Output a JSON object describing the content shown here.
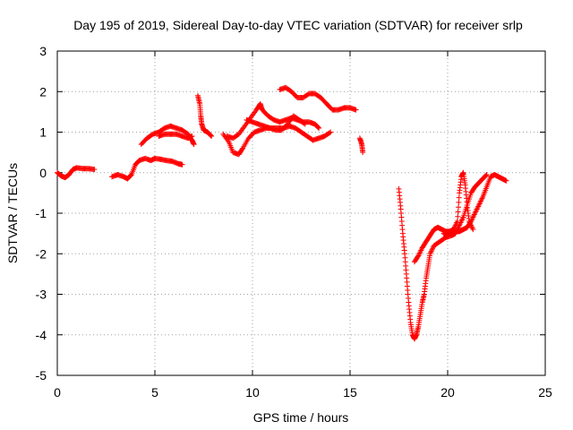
{
  "chart_data": {
    "type": "scatter",
    "title": "Day 195 of 2019, Sidereal Day-to-day VTEC variation (SDTVAR) for receiver srlp",
    "xlabel": "GPS time / hours",
    "ylabel": "SDTVAR / TECUs",
    "xlim": [
      0,
      25
    ],
    "ylim": [
      -5,
      3
    ],
    "xticks": [
      "0",
      "5",
      "10",
      "15",
      "20",
      "25"
    ],
    "yticks": [
      "3",
      "2",
      "1",
      "0",
      "-1",
      "-2",
      "-3",
      "-4",
      "-5"
    ],
    "grid": true,
    "marker": "+",
    "color": "#ff0000",
    "series": [
      {
        "segments": [
          [
            [
              0.0,
              0.0
            ],
            [
              0.2,
              -0.08
            ],
            [
              0.4,
              -0.12
            ],
            [
              0.6,
              -0.05
            ],
            [
              0.8,
              0.08
            ],
            [
              1.0,
              0.12
            ],
            [
              1.3,
              0.1
            ],
            [
              1.6,
              0.1
            ],
            [
              1.9,
              0.08
            ]
          ],
          [
            [
              2.8,
              -0.1
            ],
            [
              3.1,
              -0.05
            ],
            [
              3.4,
              -0.1
            ],
            [
              3.6,
              -0.15
            ],
            [
              3.8,
              -0.05
            ],
            [
              4.0,
              0.2
            ],
            [
              4.2,
              0.3
            ],
            [
              4.5,
              0.35
            ],
            [
              4.8,
              0.3
            ],
            [
              5.0,
              0.35
            ],
            [
              5.3,
              0.33
            ],
            [
              5.6,
              0.3
            ],
            [
              5.9,
              0.28
            ],
            [
              6.2,
              0.22
            ],
            [
              6.4,
              0.2
            ]
          ],
          [
            [
              4.3,
              0.7
            ],
            [
              4.6,
              0.85
            ],
            [
              4.9,
              0.95
            ],
            [
              5.2,
              1.0
            ],
            [
              5.5,
              1.1
            ],
            [
              5.8,
              1.15
            ],
            [
              6.1,
              1.1
            ],
            [
              6.4,
              1.05
            ],
            [
              6.7,
              0.95
            ],
            [
              6.9,
              0.8
            ],
            [
              7.0,
              0.7
            ]
          ],
          [
            [
              5.2,
              0.9
            ],
            [
              5.5,
              0.95
            ],
            [
              5.8,
              0.95
            ],
            [
              6.1,
              0.95
            ],
            [
              6.4,
              0.9
            ],
            [
              6.7,
              0.85
            ],
            [
              6.9,
              0.9
            ]
          ],
          [
            [
              7.2,
              1.9
            ],
            [
              7.3,
              1.7
            ],
            [
              7.35,
              1.4
            ],
            [
              7.4,
              1.2
            ],
            [
              7.5,
              1.05
            ],
            [
              7.7,
              1.0
            ],
            [
              7.9,
              0.9
            ]
          ],
          [
            [
              8.5,
              0.95
            ],
            [
              8.8,
              0.75
            ],
            [
              9.0,
              0.5
            ],
            [
              9.3,
              0.45
            ],
            [
              9.5,
              0.6
            ],
            [
              9.8,
              0.85
            ],
            [
              10.1,
              1.0
            ],
            [
              10.4,
              1.05
            ],
            [
              10.7,
              1.1
            ],
            [
              11.0,
              1.1
            ],
            [
              11.3,
              1.1
            ],
            [
              11.6,
              1.1
            ],
            [
              11.9,
              1.15
            ],
            [
              12.2,
              1.1
            ],
            [
              12.5,
              1.0
            ],
            [
              12.8,
              0.9
            ],
            [
              13.1,
              0.8
            ],
            [
              13.4,
              0.85
            ],
            [
              13.7,
              0.9
            ],
            [
              14.0,
              1.0
            ]
          ],
          [
            [
              8.7,
              0.9
            ],
            [
              9.0,
              0.85
            ],
            [
              9.3,
              0.95
            ],
            [
              9.6,
              1.15
            ],
            [
              9.9,
              1.35
            ],
            [
              10.2,
              1.55
            ],
            [
              10.4,
              1.7
            ],
            [
              10.5,
              1.55
            ],
            [
              10.8,
              1.4
            ],
            [
              11.1,
              1.3
            ],
            [
              11.4,
              1.25
            ],
            [
              11.7,
              1.3
            ],
            [
              12.0,
              1.35
            ],
            [
              12.3,
              1.3
            ],
            [
              12.6,
              1.25
            ],
            [
              12.9,
              1.25
            ],
            [
              13.2,
              1.2
            ],
            [
              13.4,
              1.1
            ]
          ],
          [
            [
              9.7,
              1.3
            ],
            [
              10.0,
              1.25
            ],
            [
              10.3,
              1.2
            ],
            [
              10.6,
              1.15
            ],
            [
              10.9,
              1.1
            ],
            [
              11.2,
              1.05
            ],
            [
              11.5,
              1.05
            ],
            [
              11.8,
              1.2
            ],
            [
              12.1,
              1.4
            ],
            [
              12.4,
              1.3
            ],
            [
              12.7,
              1.2
            ]
          ],
          [
            [
              11.4,
              2.05
            ],
            [
              11.7,
              2.1
            ],
            [
              12.0,
              2.0
            ],
            [
              12.3,
              1.85
            ],
            [
              12.6,
              1.85
            ],
            [
              12.9,
              1.95
            ],
            [
              13.2,
              1.95
            ],
            [
              13.5,
              1.85
            ],
            [
              13.8,
              1.7
            ],
            [
              14.1,
              1.55
            ],
            [
              14.4,
              1.55
            ],
            [
              14.7,
              1.6
            ],
            [
              15.0,
              1.6
            ],
            [
              15.3,
              1.55
            ]
          ],
          [
            [
              15.5,
              0.85
            ],
            [
              15.6,
              0.7
            ],
            [
              15.65,
              0.5
            ]
          ],
          [
            [
              17.5,
              -0.4
            ],
            [
              17.6,
              -0.9
            ],
            [
              17.7,
              -1.5
            ],
            [
              17.8,
              -2.0
            ],
            [
              17.9,
              -2.6
            ],
            [
              18.0,
              -3.2
            ],
            [
              18.1,
              -3.7
            ],
            [
              18.2,
              -4.0
            ],
            [
              18.3,
              -4.1
            ],
            [
              18.4,
              -4.0
            ],
            [
              18.5,
              -3.8
            ],
            [
              18.6,
              -3.5
            ],
            [
              18.7,
              -3.2
            ],
            [
              18.8,
              -3.0
            ],
            [
              18.9,
              -2.6
            ],
            [
              19.0,
              -2.3
            ],
            [
              19.1,
              -2.0
            ],
            [
              19.3,
              -1.8
            ],
            [
              19.6,
              -1.7
            ],
            [
              19.9,
              -1.6
            ],
            [
              20.2,
              -1.55
            ],
            [
              20.4,
              -1.5
            ],
            [
              20.6,
              -1.3
            ],
            [
              20.8,
              -1.1
            ],
            [
              21.0,
              -0.8
            ],
            [
              21.2,
              -0.5
            ],
            [
              21.4,
              -0.35
            ],
            [
              21.6,
              -0.25
            ],
            [
              21.8,
              -0.15
            ],
            [
              22.0,
              -0.05
            ]
          ],
          [
            [
              18.3,
              -2.2
            ],
            [
              18.5,
              -2.05
            ],
            [
              18.7,
              -1.85
            ],
            [
              18.9,
              -1.7
            ],
            [
              19.1,
              -1.55
            ],
            [
              19.3,
              -1.4
            ],
            [
              19.5,
              -1.35
            ],
            [
              19.7,
              -1.4
            ],
            [
              19.9,
              -1.45
            ],
            [
              20.1,
              -1.45
            ],
            [
              20.3,
              -1.4
            ],
            [
              20.5,
              -1.2
            ],
            [
              20.6,
              -0.5
            ],
            [
              20.7,
              -0.1
            ],
            [
              20.8,
              0.0
            ],
            [
              20.9,
              -0.3
            ],
            [
              21.0,
              -0.8
            ],
            [
              21.1,
              -1.2
            ],
            [
              21.3,
              -1.4
            ]
          ],
          [
            [
              19.8,
              -1.5
            ],
            [
              20.0,
              -1.55
            ],
            [
              20.2,
              -1.5
            ],
            [
              20.4,
              -1.45
            ],
            [
              20.6,
              -1.45
            ],
            [
              20.8,
              -1.4
            ],
            [
              21.0,
              -1.35
            ],
            [
              21.2,
              -1.2
            ],
            [
              21.4,
              -1.0
            ],
            [
              21.6,
              -0.8
            ],
            [
              21.8,
              -0.6
            ],
            [
              22.0,
              -0.35
            ],
            [
              22.2,
              -0.1
            ],
            [
              22.4,
              -0.05
            ],
            [
              22.6,
              -0.1
            ],
            [
              22.8,
              -0.15
            ],
            [
              23.0,
              -0.2
            ]
          ]
        ]
      }
    ]
  }
}
